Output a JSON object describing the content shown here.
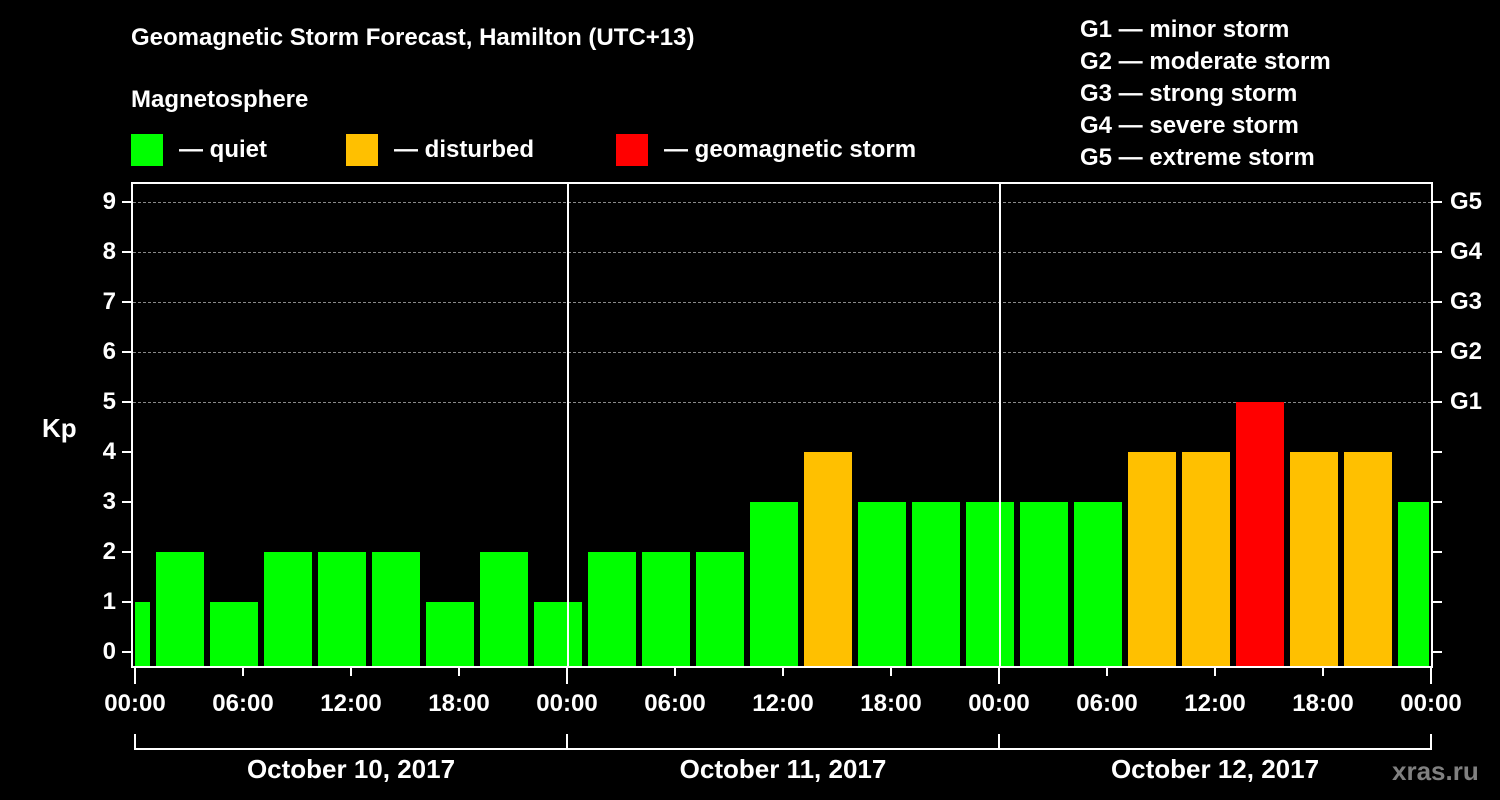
{
  "title": "Geomagnetic Storm Forecast, Hamilton (UTC+13)",
  "subtitle": "Magnetosphere",
  "legend": [
    {
      "label": "— quiet",
      "color": "#00ff00"
    },
    {
      "label": "— disturbed",
      "color": "#ffc000"
    },
    {
      "label": "— geomagnetic storm",
      "color": "#ff0000"
    }
  ],
  "g_legend": [
    "G1 — minor storm",
    "G2 — moderate storm",
    "G3 — strong storm",
    "G4 — severe storm",
    "G5 — extreme storm"
  ],
  "y_axis_label": "Kp",
  "watermark": "xras.ru",
  "chart_data": {
    "type": "bar",
    "title": "Geomagnetic Storm Forecast, Hamilton (UTC+13)",
    "xlabel": "",
    "ylabel": "Kp",
    "ylim": [
      0,
      9
    ],
    "yticks": [
      0,
      1,
      2,
      3,
      4,
      5,
      6,
      7,
      8,
      9
    ],
    "right_ticks": [
      {
        "kp": 5,
        "label": "G1"
      },
      {
        "kp": 6,
        "label": "G2"
      },
      {
        "kp": 7,
        "label": "G3"
      },
      {
        "kp": 8,
        "label": "G4"
      },
      {
        "kp": 9,
        "label": "G5"
      }
    ],
    "grid": "dashed horizontal at Kp 5-9",
    "x_tick_labels": [
      "00:00",
      "06:00",
      "12:00",
      "18:00",
      "00:00",
      "06:00",
      "12:00",
      "18:00",
      "00:00",
      "06:00",
      "12:00",
      "18:00",
      "00:00"
    ],
    "dates": [
      "October 10, 2017",
      "October 11, 2017",
      "October 12, 2017"
    ],
    "values": [
      1,
      2,
      1,
      2,
      2,
      2,
      1,
      2,
      1,
      2,
      2,
      2,
      3,
      4,
      3,
      3,
      3,
      3,
      3,
      4,
      4,
      5,
      4,
      4,
      3
    ],
    "levels": [
      "quiet",
      "quiet",
      "quiet",
      "quiet",
      "quiet",
      "quiet",
      "quiet",
      "quiet",
      "quiet",
      "quiet",
      "quiet",
      "quiet",
      "quiet",
      "disturbed",
      "quiet",
      "quiet",
      "quiet",
      "quiet",
      "quiet",
      "disturbed",
      "disturbed",
      "storm",
      "disturbed",
      "disturbed",
      "quiet"
    ],
    "colors": {
      "quiet": "#00ff00",
      "disturbed": "#ffc000",
      "storm": "#ff0000"
    }
  }
}
